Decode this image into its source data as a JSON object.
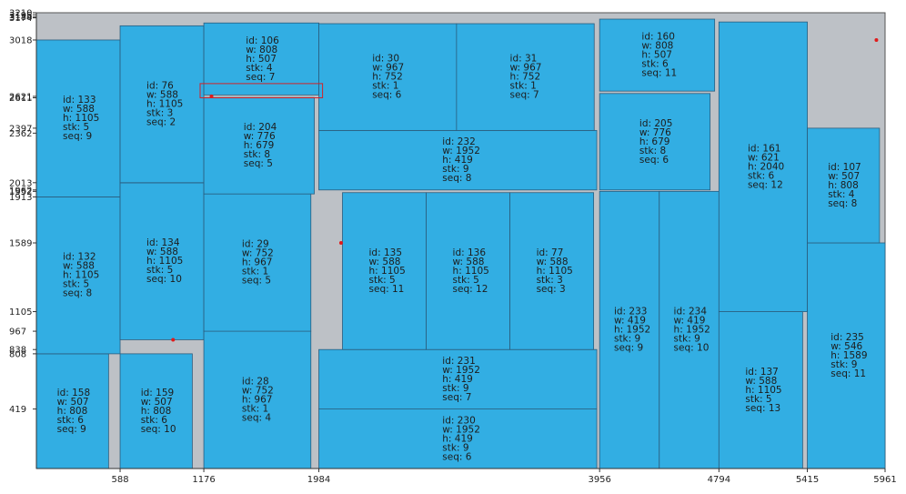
{
  "chart_data": {
    "type": "cutting-layout",
    "sheet": {
      "width": 5961,
      "height": 3210
    },
    "x_ticks": [
      588,
      1176,
      1984,
      3956,
      4794,
      5415,
      5961
    ],
    "y_ticks": [
      3210,
      3195,
      3180,
      3174,
      3018,
      2621,
      2611,
      2397,
      2362,
      2013,
      1962,
      1952,
      1913,
      1589,
      1105,
      967,
      838,
      808,
      419
    ],
    "y_tick_labels": [
      "3210",
      "3195",
      "3180",
      "3174",
      "3018",
      "2621",
      "2611",
      "2397",
      "2362",
      "2013",
      "1962",
      "1952",
      "1913",
      "1589",
      "1105",
      "967",
      "838",
      "808",
      "419"
    ],
    "pieces": [
      {
        "id": 158,
        "x": 0,
        "y": 0,
        "w": 507,
        "h": 808,
        "stk": 6,
        "seq": 9
      },
      {
        "id": 132,
        "x": 0,
        "y": 808,
        "w": 588,
        "h": 1105,
        "stk": 5,
        "seq": 8
      },
      {
        "id": 133,
        "x": 0,
        "y": 1913,
        "w": 588,
        "h": 1105,
        "stk": 5,
        "seq": 9
      },
      {
        "id": 159,
        "x": 588,
        "y": 0,
        "w": 507,
        "h": 808,
        "stk": 6,
        "seq": 10
      },
      {
        "id": 134,
        "x": 588,
        "y": 907,
        "w": 588,
        "h": 1105,
        "stk": 5,
        "seq": 10
      },
      {
        "id": 76,
        "x": 588,
        "y": 2013,
        "w": 588,
        "h": 1105,
        "stk": 3,
        "seq": 2
      },
      {
        "id": 28,
        "x": 1176,
        "y": 0,
        "w": 752,
        "h": 967,
        "stk": 1,
        "seq": 4
      },
      {
        "id": 29,
        "x": 1176,
        "y": 967,
        "w": 752,
        "h": 967,
        "stk": 1,
        "seq": 5
      },
      {
        "id": 204,
        "x": 1176,
        "y": 1934,
        "w": 776,
        "h": 679,
        "stk": 8,
        "seq": 5
      },
      {
        "id": 106,
        "x": 1176,
        "y": 2631,
        "w": 808,
        "h": 507,
        "stk": 4,
        "seq": 7
      },
      {
        "id": 230,
        "x": 1984,
        "y": 0,
        "w": 1952,
        "h": 419,
        "stk": 9,
        "seq": 6
      },
      {
        "id": 231,
        "x": 1984,
        "y": 419,
        "w": 1952,
        "h": 419,
        "stk": 9,
        "seq": 7
      },
      {
        "id": 135,
        "x": 2150,
        "y": 838,
        "w": 588,
        "h": 1105,
        "stk": 5,
        "seq": 11
      },
      {
        "id": 136,
        "x": 2738,
        "y": 838,
        "w": 588,
        "h": 1105,
        "stk": 5,
        "seq": 12
      },
      {
        "id": 77,
        "x": 3326,
        "y": 838,
        "w": 588,
        "h": 1105,
        "stk": 3,
        "seq": 3
      },
      {
        "id": 232,
        "x": 1984,
        "y": 1962,
        "w": 1952,
        "h": 419,
        "stk": 9,
        "seq": 8
      },
      {
        "id": 30,
        "x": 1984,
        "y": 2381,
        "w": 967,
        "h": 752,
        "stk": 1,
        "seq": 6
      },
      {
        "id": 31,
        "x": 2951,
        "y": 2381,
        "w": 967,
        "h": 752,
        "stk": 1,
        "seq": 7
      },
      {
        "id": 233,
        "x": 3956,
        "y": 0,
        "w": 419,
        "h": 1952,
        "stk": 9,
        "seq": 9
      },
      {
        "id": 234,
        "x": 4375,
        "y": 0,
        "w": 419,
        "h": 1952,
        "stk": 9,
        "seq": 10
      },
      {
        "id": 205,
        "x": 3956,
        "y": 1962,
        "w": 776,
        "h": 679,
        "stk": 8,
        "seq": 6
      },
      {
        "id": 160,
        "x": 3956,
        "y": 2658,
        "w": 808,
        "h": 507,
        "stk": 6,
        "seq": 11
      },
      {
        "id": 137,
        "x": 4794,
        "y": 0,
        "w": 588,
        "h": 1105,
        "stk": 5,
        "seq": 13
      },
      {
        "id": 161,
        "x": 4794,
        "y": 1105,
        "w": 621,
        "h": 2040,
        "stk": 6,
        "seq": 12
      },
      {
        "id": 235,
        "x": 5415,
        "y": 0,
        "w": 546,
        "h": 1589,
        "stk": 9,
        "seq": 11
      },
      {
        "id": 107,
        "x": 5415,
        "y": 1589,
        "w": 507,
        "h": 808,
        "stk": 4,
        "seq": 8
      }
    ],
    "highlight": {
      "x": 1150,
      "y": 2611,
      "w": 860,
      "h": 100
    },
    "markers": [
      {
        "x": 1230,
        "y": 2621
      },
      {
        "x": 960,
        "y": 907
      },
      {
        "x": 2140,
        "y": 1589
      },
      {
        "x": 5900,
        "y": 3018
      }
    ]
  }
}
